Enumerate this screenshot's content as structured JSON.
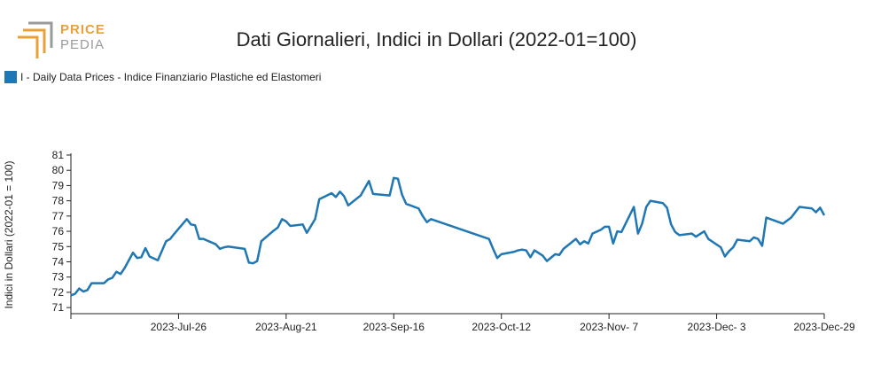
{
  "logo": {
    "line1": "PRICE",
    "line2": "PEDIA"
  },
  "colors": {
    "series": "#1f77b4",
    "logo_orange": "#e9a23b",
    "logo_gray": "#9a9a9a",
    "axis": "#222222"
  },
  "chart_data": {
    "type": "line",
    "title": "Dati Giornalieri, Indici in Dollari (2022-01=100)",
    "ylabel": "Indici in Dollari (2022-01 = 100)",
    "xlabel": "",
    "ylim": [
      70.6,
      81
    ],
    "yticks": [
      71,
      72,
      73,
      74,
      75,
      76,
      77,
      78,
      79,
      80,
      81
    ],
    "xlim": [
      "2023-06-30",
      "2023-12-29"
    ],
    "xticks": [
      {
        "date": "2023-07-26",
        "label": "2023-Jul-26"
      },
      {
        "date": "2023-08-21",
        "label": "2023-Aug-21"
      },
      {
        "date": "2023-09-16",
        "label": "2023-Sep-16"
      },
      {
        "date": "2023-10-12",
        "label": "2023-Oct-12"
      },
      {
        "date": "2023-11-07",
        "label": "2023-Nov- 7"
      },
      {
        "date": "2023-12-03",
        "label": "2023-Dec- 3"
      },
      {
        "date": "2023-12-29",
        "label": "2023-Dec-29"
      }
    ],
    "grid": false,
    "legend_position": "top-left",
    "series": [
      {
        "name": "I - Daily Data Prices - Indice Finanziario Plastiche ed Elastomeri",
        "color": "#1f77b4",
        "points": [
          [
            "2023-06-30",
            71.8
          ],
          [
            "2023-07-01",
            71.9
          ],
          [
            "2023-07-02",
            72.25
          ],
          [
            "2023-07-03",
            72.05
          ],
          [
            "2023-07-04",
            72.15
          ],
          [
            "2023-07-05",
            72.6
          ],
          [
            "2023-07-08",
            72.6
          ],
          [
            "2023-07-09",
            72.85
          ],
          [
            "2023-07-10",
            72.95
          ],
          [
            "2023-07-11",
            73.35
          ],
          [
            "2023-07-12",
            73.2
          ],
          [
            "2023-07-13",
            73.6
          ],
          [
            "2023-07-15",
            74.6
          ],
          [
            "2023-07-16",
            74.25
          ],
          [
            "2023-07-17",
            74.3
          ],
          [
            "2023-07-18",
            74.9
          ],
          [
            "2023-07-19",
            74.35
          ],
          [
            "2023-07-21",
            74.1
          ],
          [
            "2023-07-23",
            75.35
          ],
          [
            "2023-07-24",
            75.5
          ],
          [
            "2023-07-25",
            75.85
          ],
          [
            "2023-07-28",
            76.8
          ],
          [
            "2023-07-29",
            76.45
          ],
          [
            "2023-07-30",
            76.4
          ],
          [
            "2023-07-31",
            75.5
          ],
          [
            "2023-08-01",
            75.5
          ],
          [
            "2023-08-04",
            75.15
          ],
          [
            "2023-08-05",
            74.85
          ],
          [
            "2023-08-06",
            74.95
          ],
          [
            "2023-08-07",
            75.0
          ],
          [
            "2023-08-11",
            74.85
          ],
          [
            "2023-08-12",
            73.95
          ],
          [
            "2023-08-13",
            73.9
          ],
          [
            "2023-08-14",
            74.05
          ],
          [
            "2023-08-15",
            75.35
          ],
          [
            "2023-08-18",
            76.05
          ],
          [
            "2023-08-19",
            76.25
          ],
          [
            "2023-08-20",
            76.8
          ],
          [
            "2023-08-21",
            76.65
          ],
          [
            "2023-08-22",
            76.35
          ],
          [
            "2023-08-25",
            76.45
          ],
          [
            "2023-08-26",
            75.9
          ],
          [
            "2023-08-28",
            76.8
          ],
          [
            "2023-08-29",
            78.1
          ],
          [
            "2023-09-01",
            78.5
          ],
          [
            "2023-09-02",
            78.25
          ],
          [
            "2023-09-03",
            78.6
          ],
          [
            "2023-09-04",
            78.3
          ],
          [
            "2023-09-05",
            77.7
          ],
          [
            "2023-09-08",
            78.35
          ],
          [
            "2023-09-10",
            79.3
          ],
          [
            "2023-09-11",
            78.45
          ],
          [
            "2023-09-15",
            78.35
          ],
          [
            "2023-09-16",
            79.5
          ],
          [
            "2023-09-17",
            79.45
          ],
          [
            "2023-09-18",
            78.4
          ],
          [
            "2023-09-19",
            77.8
          ],
          [
            "2023-09-22",
            77.5
          ],
          [
            "2023-09-23",
            77.0
          ],
          [
            "2023-09-24",
            76.6
          ],
          [
            "2023-09-25",
            76.8
          ],
          [
            "2023-10-09",
            75.5
          ],
          [
            "2023-10-10",
            74.85
          ],
          [
            "2023-10-11",
            74.25
          ],
          [
            "2023-10-12",
            74.5
          ],
          [
            "2023-10-15",
            74.65
          ],
          [
            "2023-10-16",
            74.75
          ],
          [
            "2023-10-17",
            74.8
          ],
          [
            "2023-10-18",
            74.75
          ],
          [
            "2023-10-19",
            74.3
          ],
          [
            "2023-10-20",
            74.75
          ],
          [
            "2023-10-22",
            74.4
          ],
          [
            "2023-10-23",
            74.05
          ],
          [
            "2023-10-25",
            74.5
          ],
          [
            "2023-10-26",
            74.45
          ],
          [
            "2023-10-27",
            74.85
          ],
          [
            "2023-10-30",
            75.5
          ],
          [
            "2023-10-31",
            75.15
          ],
          [
            "2023-11-01",
            75.35
          ],
          [
            "2023-11-02",
            75.2
          ],
          [
            "2023-11-03",
            75.85
          ],
          [
            "2023-11-05",
            76.1
          ],
          [
            "2023-11-06",
            76.3
          ],
          [
            "2023-11-07",
            76.3
          ],
          [
            "2023-11-08",
            75.2
          ],
          [
            "2023-11-09",
            76.0
          ],
          [
            "2023-11-10",
            75.95
          ],
          [
            "2023-11-13",
            77.6
          ],
          [
            "2023-11-14",
            75.85
          ],
          [
            "2023-11-15",
            76.5
          ],
          [
            "2023-11-16",
            77.6
          ],
          [
            "2023-11-17",
            78.0
          ],
          [
            "2023-11-20",
            77.85
          ],
          [
            "2023-11-21",
            77.55
          ],
          [
            "2023-11-22",
            76.45
          ],
          [
            "2023-11-23",
            75.95
          ],
          [
            "2023-11-24",
            75.75
          ],
          [
            "2023-11-27",
            75.85
          ],
          [
            "2023-11-28",
            75.65
          ],
          [
            "2023-11-30",
            76.0
          ],
          [
            "2023-12-01",
            75.5
          ],
          [
            "2023-12-04",
            74.95
          ],
          [
            "2023-12-05",
            74.35
          ],
          [
            "2023-12-06",
            74.7
          ],
          [
            "2023-12-07",
            74.95
          ],
          [
            "2023-12-08",
            75.45
          ],
          [
            "2023-12-11",
            75.35
          ],
          [
            "2023-12-12",
            75.6
          ],
          [
            "2023-12-13",
            75.5
          ],
          [
            "2023-12-14",
            75.05
          ],
          [
            "2023-12-15",
            76.9
          ],
          [
            "2023-12-18",
            76.6
          ],
          [
            "2023-12-19",
            76.5
          ],
          [
            "2023-12-21",
            76.9
          ],
          [
            "2023-12-23",
            77.6
          ],
          [
            "2023-12-26",
            77.5
          ],
          [
            "2023-12-27",
            77.25
          ],
          [
            "2023-12-28",
            77.55
          ],
          [
            "2023-12-29",
            77.05
          ]
        ]
      }
    ]
  }
}
